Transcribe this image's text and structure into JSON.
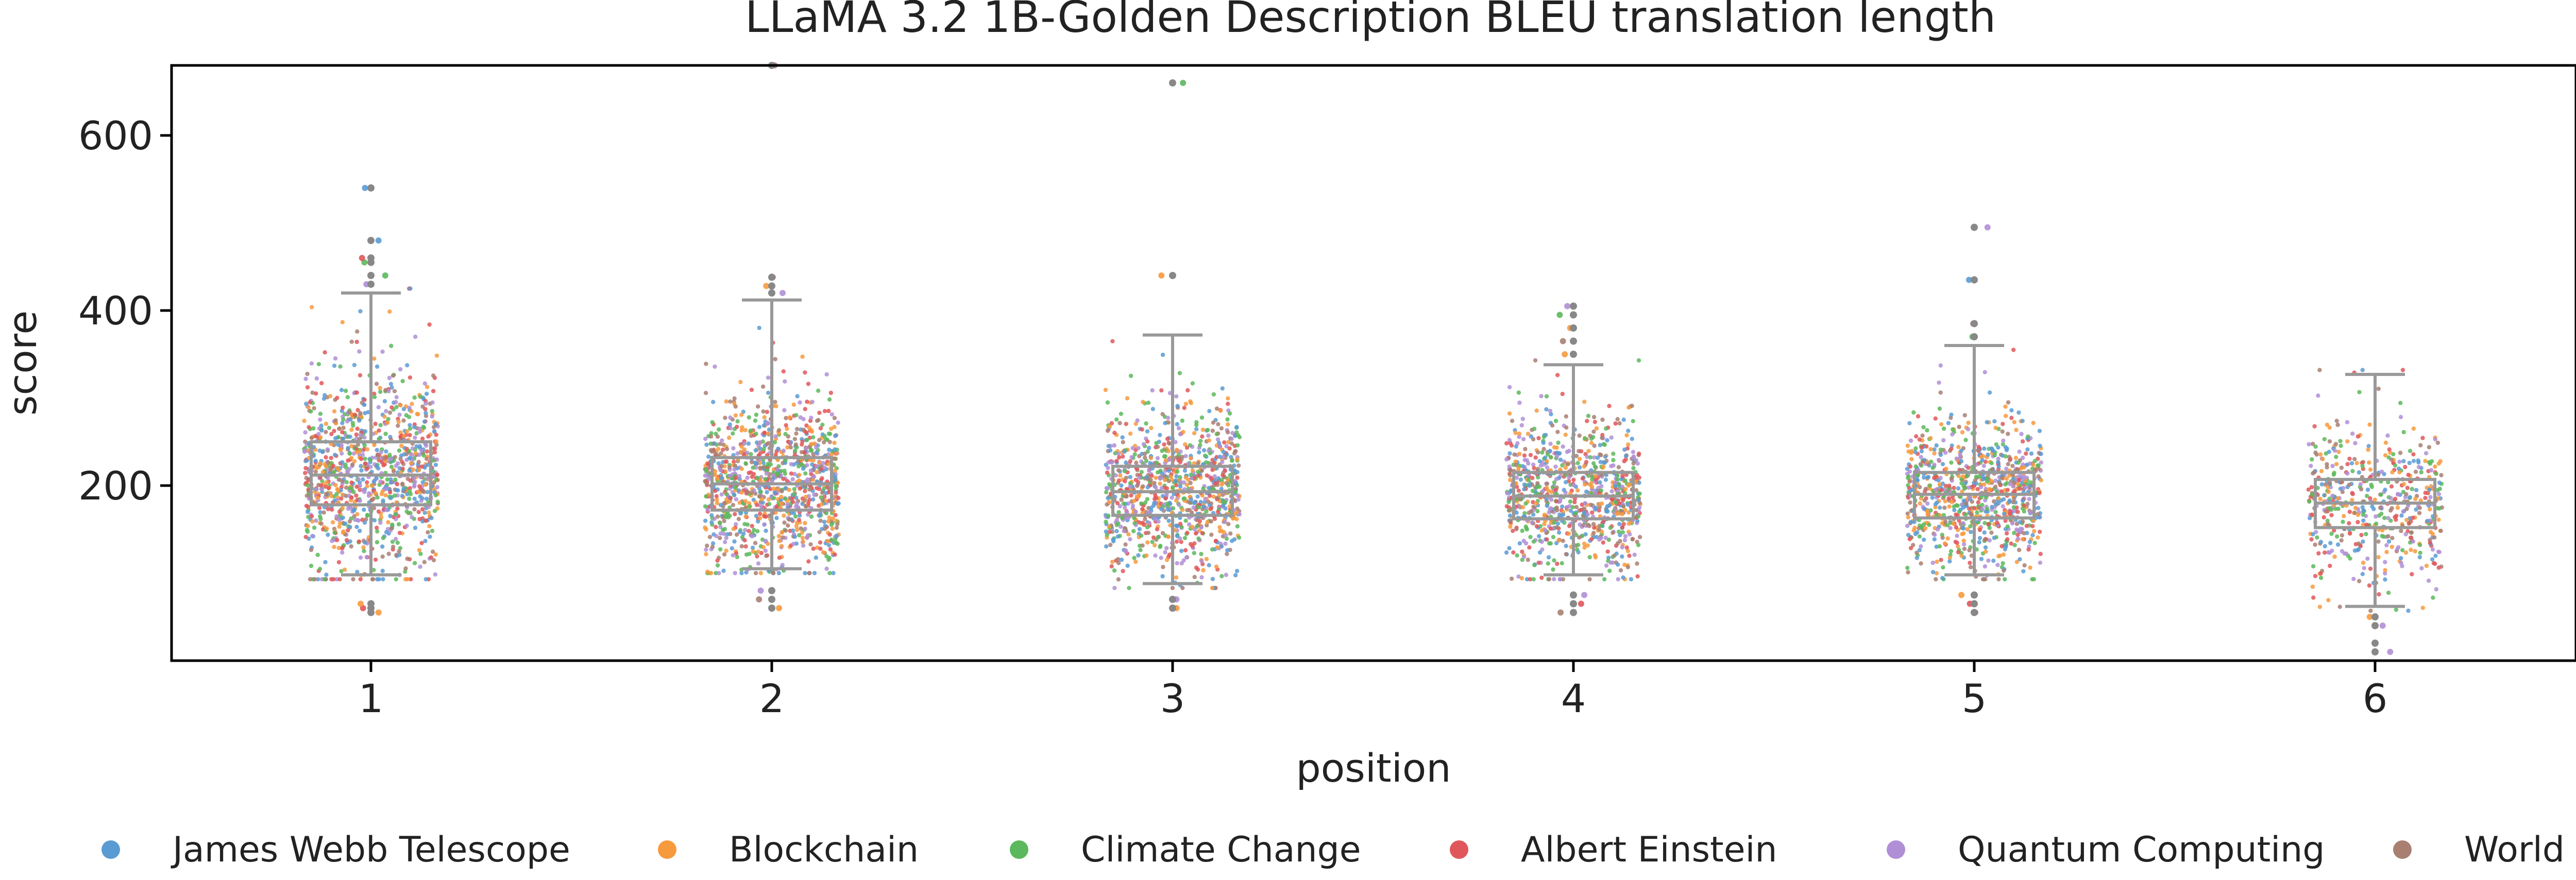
{
  "chart_data": {
    "type": "box+strip",
    "title": "LLaMA 3.2 1B-Golden Description BLEU translation length",
    "xlabel": "position",
    "ylabel": "score",
    "ylim": [
      0,
      680
    ],
    "yticks": [
      200,
      400,
      600
    ],
    "categories": [
      "1",
      "2",
      "3",
      "4",
      "5",
      "6"
    ],
    "boxes": [
      {
        "position": "1",
        "whisker_low": 98,
        "q1": 178,
        "median": 212,
        "q3": 250,
        "whisker_high": 420,
        "outliers": [
          55,
          60,
          65,
          430,
          440,
          455,
          460,
          480,
          540
        ]
      },
      {
        "position": "2",
        "whisker_low": 105,
        "q1": 172,
        "median": 202,
        "q3": 232,
        "whisker_high": 412,
        "outliers": [
          60,
          70,
          80,
          420,
          428,
          438,
          680
        ]
      },
      {
        "position": "3",
        "whisker_low": 88,
        "q1": 166,
        "median": 193,
        "q3": 222,
        "whisker_high": 372,
        "outliers": [
          60,
          70,
          440,
          660
        ]
      },
      {
        "position": "4",
        "whisker_low": 98,
        "q1": 162,
        "median": 188,
        "q3": 215,
        "whisker_high": 338,
        "outliers": [
          55,
          65,
          75,
          350,
          365,
          380,
          395,
          405
        ]
      },
      {
        "position": "5",
        "whisker_low": 98,
        "q1": 163,
        "median": 190,
        "q3": 215,
        "whisker_high": 360,
        "outliers": [
          55,
          65,
          75,
          370,
          385,
          435,
          495
        ]
      },
      {
        "position": "6",
        "whisker_low": 62,
        "q1": 152,
        "median": 180,
        "q3": 207,
        "whisker_high": 327,
        "outliers": [
          10,
          20,
          40,
          50
        ]
      }
    ],
    "series": [
      {
        "name": "James Webb Telescope",
        "color": "#5a9bd4"
      },
      {
        "name": "Blockchain",
        "color": "#f79a3e"
      },
      {
        "name": "Climate Change",
        "color": "#5cb85c"
      },
      {
        "name": "Albert Einstein",
        "color": "#e0575b"
      },
      {
        "name": "Quantum Computing",
        "color": "#b08fd6"
      },
      {
        "name": "World War II",
        "color": "#a97f72"
      }
    ],
    "strip_counts": [
      1100,
      1100,
      1000,
      900,
      900,
      520
    ],
    "box_color": "#999999",
    "legend_position": "bottom",
    "grid": false
  }
}
